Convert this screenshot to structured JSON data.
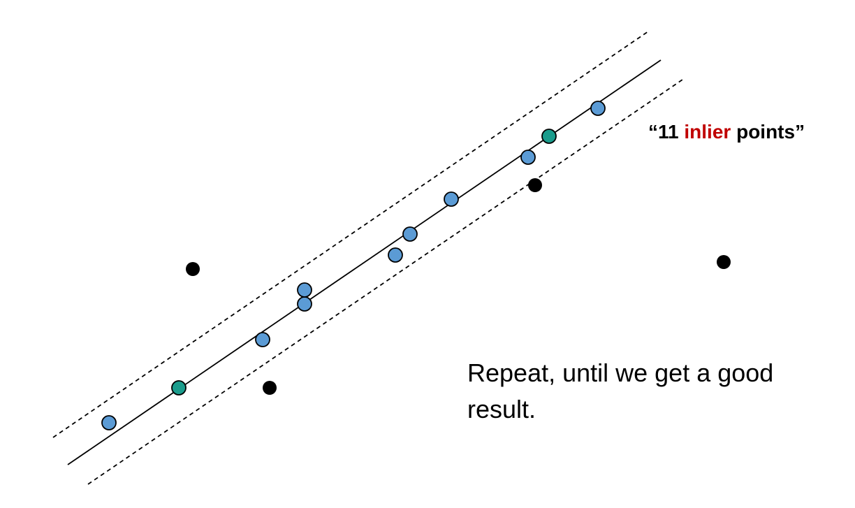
{
  "label": {
    "quote_open": "“",
    "count": "11",
    "accent_word": "inlier",
    "tail": "points",
    "quote_close": "”"
  },
  "caption": "Repeat, until we get a good result.",
  "colors": {
    "inlier_fill": "#5b9bd5",
    "sample_fill": "#1a9c8c",
    "outlier_fill": "#000000",
    "line": "#000000",
    "accent": "#c00000"
  },
  "counts": {
    "inliers": 11,
    "samples": 2,
    "outliers": 4
  }
}
